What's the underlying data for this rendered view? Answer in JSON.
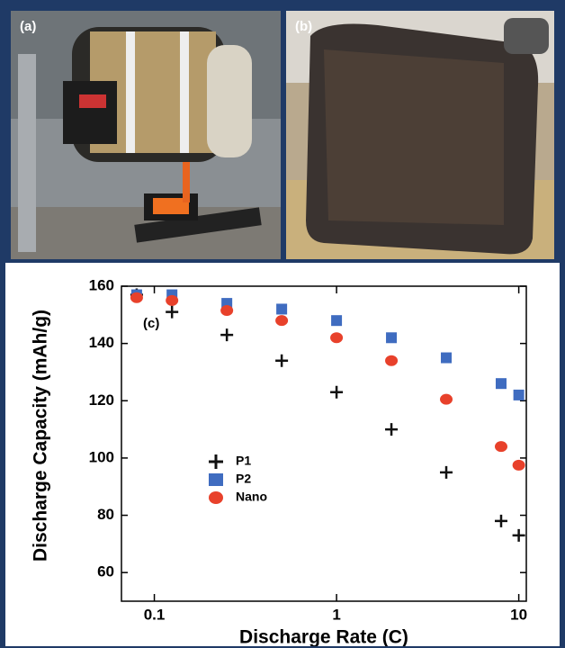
{
  "photos": [
    {
      "label": "(a)"
    },
    {
      "label": "(b)"
    }
  ],
  "chart_data": {
    "type": "scatter",
    "annotation": "(c)",
    "xlabel": "Discharge Rate (C)",
    "ylabel": "Discharge Capacity (mAh/g)",
    "xscale": "log",
    "xlim": [
      0.066,
      11
    ],
    "ylim": [
      50,
      160
    ],
    "xticks": [
      0.1,
      1,
      10
    ],
    "yticks": [
      60,
      80,
      100,
      120,
      140,
      160
    ],
    "legend": "lower left",
    "x": [
      0.08,
      0.125,
      0.25,
      0.5,
      1,
      2,
      4,
      8,
      10
    ],
    "series": [
      {
        "name": "P1",
        "color": "#111111",
        "marker": "plus",
        "values": [
          157,
          151,
          143,
          134,
          123,
          110,
          95,
          78,
          73
        ]
      },
      {
        "name": "P2",
        "color": "#3f6cc0",
        "marker": "square",
        "values": [
          157,
          157,
          154,
          152,
          148,
          142,
          135,
          126,
          122
        ]
      },
      {
        "name": "Nano",
        "color": "#e8412b",
        "marker": "circle",
        "values": [
          156,
          155,
          151.5,
          148,
          142,
          134,
          120.5,
          104,
          97.5
        ]
      }
    ]
  }
}
